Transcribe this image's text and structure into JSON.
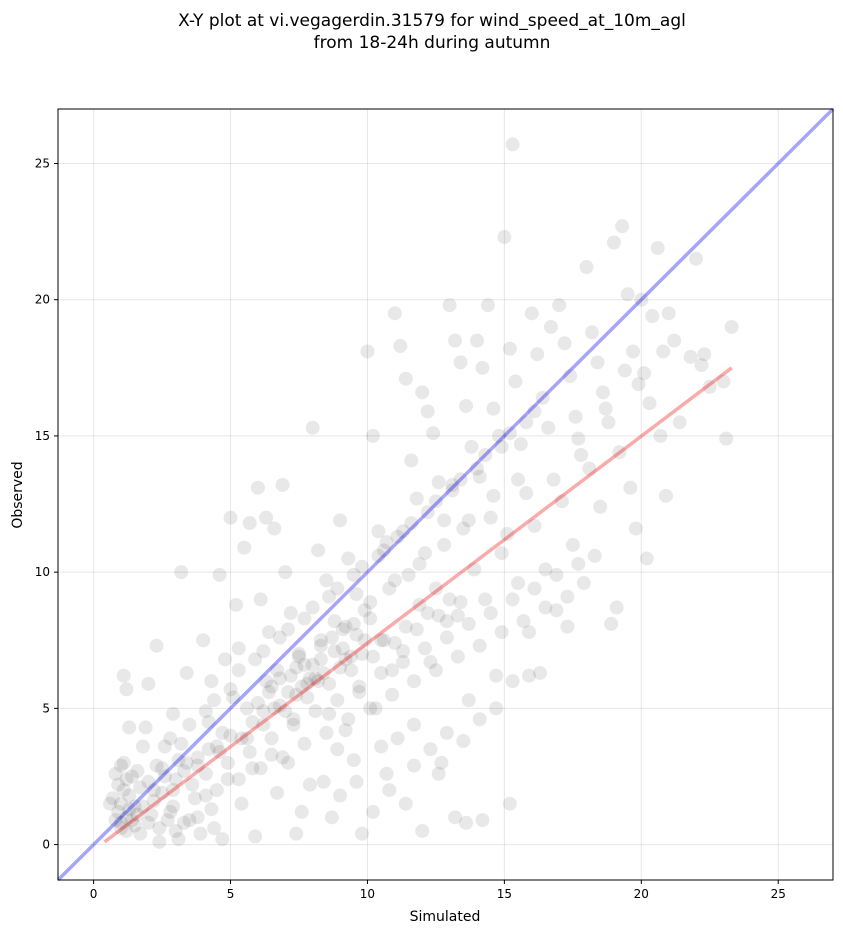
{
  "chart_data": {
    "type": "scatter",
    "title_line1": "X-Y plot at vi.vegagerdin.31579 for wind_speed_at_10m_agl",
    "title_line2": "from 18-24h during autumn",
    "xlabel": "Simulated",
    "ylabel": "Observed",
    "xlim": [
      -1.3,
      27
    ],
    "ylim": [
      -1.3,
      27
    ],
    "xticks": [
      0,
      5,
      10,
      15,
      20,
      25
    ],
    "yticks": [
      0,
      5,
      10,
      15,
      20,
      25
    ],
    "grid": true,
    "point_color": "#000000",
    "point_opacity": 0.09,
    "identity_line": {
      "x": [
        -1.3,
        27
      ],
      "y": [
        -1.3,
        27
      ],
      "color": "#0000ee",
      "opacity": 0.35
    },
    "fit_line": {
      "x": [
        0.4,
        23.3
      ],
      "y": [
        0.1,
        17.5
      ],
      "color": "#ee0000",
      "opacity": 0.33
    },
    "points": [
      [
        1.0,
        1.5
      ],
      [
        1.1,
        2.0
      ],
      [
        0.9,
        1.2
      ],
      [
        1.3,
        1.8
      ],
      [
        0.8,
        2.6
      ],
      [
        1.2,
        1.0
      ],
      [
        1.5,
        1.4
      ],
      [
        1.0,
        0.8
      ],
      [
        0.7,
        1.7
      ],
      [
        1.4,
        2.5
      ],
      [
        1.1,
        3.0
      ],
      [
        0.9,
        2.2
      ],
      [
        1.6,
        1.1
      ],
      [
        1.2,
        0.5
      ],
      [
        0.8,
        0.9
      ],
      [
        1.7,
        2.1
      ],
      [
        1.3,
        1.3
      ],
      [
        1.0,
        2.9
      ],
      [
        1.5,
        0.7
      ],
      [
        0.6,
        1.5
      ],
      [
        1.1,
        6.2
      ],
      [
        1.2,
        5.7
      ],
      [
        1.3,
        4.3
      ],
      [
        1.9,
        4.3
      ],
      [
        2.3,
        7.3
      ],
      [
        2.0,
        5.9
      ],
      [
        1.8,
        3.6
      ],
      [
        2.5,
        2.8
      ],
      [
        2.2,
        1.6
      ],
      [
        2.7,
        0.9
      ],
      [
        2.4,
        0.1
      ],
      [
        3.0,
        0.5
      ],
      [
        3.2,
        10.0
      ],
      [
        3.4,
        6.3
      ],
      [
        2.9,
        4.8
      ],
      [
        3.1,
        3.1
      ],
      [
        3.6,
        2.2
      ],
      [
        3.8,
        1.0
      ],
      [
        3.3,
        2.7
      ],
      [
        2.8,
        3.9
      ],
      [
        4.0,
        7.5
      ],
      [
        4.3,
        6.0
      ],
      [
        4.6,
        9.9
      ],
      [
        4.8,
        6.8
      ],
      [
        4.2,
        4.5
      ],
      [
        4.5,
        3.6
      ],
      [
        4.9,
        2.4
      ],
      [
        4.1,
        1.8
      ],
      [
        4.4,
        0.6
      ],
      [
        4.7,
        0.2
      ],
      [
        5.0,
        12.0
      ],
      [
        5.2,
        8.8
      ],
      [
        5.5,
        10.9
      ],
      [
        5.7,
        11.8
      ],
      [
        5.3,
        7.2
      ],
      [
        5.1,
        5.4
      ],
      [
        5.6,
        3.9
      ],
      [
        5.8,
        2.8
      ],
      [
        5.4,
        1.5
      ],
      [
        5.9,
        0.3
      ],
      [
        6.0,
        13.1
      ],
      [
        6.3,
        12.0
      ],
      [
        6.6,
        11.6
      ],
      [
        6.9,
        13.2
      ],
      [
        6.1,
        9.0
      ],
      [
        6.4,
        7.8
      ],
      [
        6.8,
        6.1
      ],
      [
        6.2,
        4.9
      ],
      [
        6.5,
        3.3
      ],
      [
        6.7,
        1.9
      ],
      [
        7.0,
        10.0
      ],
      [
        7.2,
        8.5
      ],
      [
        7.5,
        7.0
      ],
      [
        7.8,
        5.9
      ],
      [
        7.3,
        4.6
      ],
      [
        7.1,
        3.0
      ],
      [
        7.6,
        1.2
      ],
      [
        7.4,
        0.4
      ],
      [
        7.9,
        2.2
      ],
      [
        7.7,
        6.6
      ],
      [
        8.0,
        15.3
      ],
      [
        8.2,
        10.8
      ],
      [
        8.5,
        9.7
      ],
      [
        8.8,
        8.2
      ],
      [
        8.3,
        7.3
      ],
      [
        8.1,
        6.1
      ],
      [
        8.6,
        4.8
      ],
      [
        8.9,
        3.5
      ],
      [
        8.4,
        2.3
      ],
      [
        8.7,
        1.0
      ],
      [
        9.0,
        11.9
      ],
      [
        9.3,
        10.5
      ],
      [
        9.6,
        9.2
      ],
      [
        9.9,
        8.6
      ],
      [
        9.1,
        7.9
      ],
      [
        9.4,
        6.9
      ],
      [
        9.7,
        5.6
      ],
      [
        9.2,
        4.2
      ],
      [
        9.5,
        3.1
      ],
      [
        9.8,
        0.4
      ],
      [
        10.0,
        18.1
      ],
      [
        10.2,
        15.0
      ],
      [
        10.4,
        11.5
      ],
      [
        10.6,
        10.8
      ],
      [
        10.8,
        9.4
      ],
      [
        10.1,
        8.3
      ],
      [
        10.5,
        7.5
      ],
      [
        10.9,
        6.4
      ],
      [
        10.3,
        5.0
      ],
      [
        10.7,
        2.6
      ],
      [
        11.0,
        19.5
      ],
      [
        11.2,
        18.3
      ],
      [
        11.4,
        17.1
      ],
      [
        11.6,
        14.1
      ],
      [
        11.8,
        12.7
      ],
      [
        11.1,
        11.3
      ],
      [
        11.5,
        9.9
      ],
      [
        11.9,
        8.8
      ],
      [
        11.3,
        7.1
      ],
      [
        11.7,
        4.4
      ],
      [
        12.0,
        16.6
      ],
      [
        12.2,
        15.9
      ],
      [
        12.4,
        15.1
      ],
      [
        12.6,
        13.3
      ],
      [
        12.8,
        11.9
      ],
      [
        12.1,
        10.7
      ],
      [
        12.5,
        9.4
      ],
      [
        12.9,
        8.2
      ],
      [
        12.3,
        6.7
      ],
      [
        12.7,
        3.0
      ],
      [
        13.0,
        19.8
      ],
      [
        13.2,
        18.5
      ],
      [
        13.4,
        17.7
      ],
      [
        13.6,
        16.1
      ],
      [
        13.8,
        14.6
      ],
      [
        13.1,
        13.2
      ],
      [
        13.5,
        11.6
      ],
      [
        13.9,
        10.1
      ],
      [
        13.3,
        8.4
      ],
      [
        13.7,
        5.3
      ],
      [
        14.0,
        18.5
      ],
      [
        14.2,
        17.5
      ],
      [
        14.4,
        19.8
      ],
      [
        14.6,
        16.0
      ],
      [
        14.8,
        15.0
      ],
      [
        14.1,
        13.5
      ],
      [
        14.5,
        12.0
      ],
      [
        14.9,
        10.7
      ],
      [
        14.3,
        9.0
      ],
      [
        14.7,
        6.2
      ],
      [
        15.0,
        22.3
      ],
      [
        15.2,
        18.2
      ],
      [
        15.3,
        25.7
      ],
      [
        15.4,
        17.0
      ],
      [
        15.6,
        14.7
      ],
      [
        15.8,
        12.9
      ],
      [
        15.1,
        11.4
      ],
      [
        15.5,
        9.6
      ],
      [
        15.9,
        7.8
      ],
      [
        15.2,
        1.5
      ],
      [
        16.0,
        19.5
      ],
      [
        16.2,
        18.0
      ],
      [
        16.4,
        16.4
      ],
      [
        16.6,
        15.3
      ],
      [
        16.8,
        13.4
      ],
      [
        16.1,
        11.7
      ],
      [
        16.5,
        10.1
      ],
      [
        16.9,
        8.6
      ],
      [
        16.3,
        6.3
      ],
      [
        16.7,
        19.0
      ],
      [
        17.0,
        19.8
      ],
      [
        17.2,
        18.4
      ],
      [
        17.4,
        17.2
      ],
      [
        17.6,
        15.7
      ],
      [
        17.8,
        14.3
      ],
      [
        17.1,
        12.6
      ],
      [
        17.5,
        11.0
      ],
      [
        17.9,
        9.6
      ],
      [
        17.3,
        8.0
      ],
      [
        17.7,
        14.9
      ],
      [
        18.0,
        21.2
      ],
      [
        18.2,
        18.8
      ],
      [
        18.4,
        17.7
      ],
      [
        18.6,
        16.6
      ],
      [
        18.8,
        15.5
      ],
      [
        18.1,
        13.8
      ],
      [
        18.5,
        12.4
      ],
      [
        18.9,
        8.1
      ],
      [
        18.3,
        10.6
      ],
      [
        18.7,
        16.0
      ],
      [
        19.0,
        22.1
      ],
      [
        19.3,
        22.7
      ],
      [
        19.5,
        20.2
      ],
      [
        19.7,
        18.1
      ],
      [
        19.9,
        16.9
      ],
      [
        19.2,
        14.4
      ],
      [
        19.6,
        13.1
      ],
      [
        19.8,
        11.6
      ],
      [
        19.1,
        8.7
      ],
      [
        19.4,
        17.4
      ],
      [
        20.0,
        20.0
      ],
      [
        20.2,
        10.5
      ],
      [
        20.4,
        19.4
      ],
      [
        20.6,
        21.9
      ],
      [
        20.8,
        18.1
      ],
      [
        20.3,
        16.2
      ],
      [
        20.7,
        15.0
      ],
      [
        20.1,
        17.3
      ],
      [
        21.0,
        19.5
      ],
      [
        21.4,
        15.5
      ],
      [
        21.8,
        17.9
      ],
      [
        22.0,
        21.5
      ],
      [
        22.3,
        18.0
      ],
      [
        22.5,
        16.8
      ],
      [
        23.1,
        14.9
      ],
      [
        23.3,
        19.0
      ],
      [
        23.0,
        17.0
      ],
      [
        21.2,
        18.5
      ],
      [
        20.9,
        12.8
      ],
      [
        22.2,
        17.6
      ],
      [
        1.2,
        2.4
      ],
      [
        1.6,
        2.7
      ],
      [
        2.0,
        2.3
      ],
      [
        2.3,
        2.9
      ],
      [
        2.6,
        3.6
      ],
      [
        2.9,
        2.0
      ],
      [
        3.2,
        3.7
      ],
      [
        3.5,
        4.4
      ],
      [
        3.8,
        3.2
      ],
      [
        4.1,
        4.9
      ],
      [
        4.4,
        5.3
      ],
      [
        4.7,
        4.1
      ],
      [
        5.0,
        5.7
      ],
      [
        5.3,
        6.4
      ],
      [
        5.6,
        5.0
      ],
      [
        5.9,
        6.8
      ],
      [
        6.2,
        7.1
      ],
      [
        6.5,
        5.8
      ],
      [
        6.8,
        7.6
      ],
      [
        7.1,
        7.9
      ],
      [
        7.4,
        6.5
      ],
      [
        7.7,
        8.3
      ],
      [
        8.0,
        8.7
      ],
      [
        8.3,
        7.5
      ],
      [
        8.6,
        9.1
      ],
      [
        8.9,
        9.4
      ],
      [
        9.2,
        8.0
      ],
      [
        9.5,
        9.9
      ],
      [
        9.8,
        10.2
      ],
      [
        10.1,
        8.9
      ],
      [
        10.4,
        10.6
      ],
      [
        10.7,
        11.1
      ],
      [
        11.0,
        9.7
      ],
      [
        11.3,
        11.5
      ],
      [
        11.6,
        11.8
      ],
      [
        11.9,
        10.3
      ],
      [
        12.2,
        12.2
      ],
      [
        12.5,
        12.6
      ],
      [
        12.8,
        11.0
      ],
      [
        13.1,
        13.0
      ],
      [
        13.4,
        13.4
      ],
      [
        13.7,
        11.9
      ],
      [
        14.0,
        13.8
      ],
      [
        14.3,
        14.3
      ],
      [
        14.6,
        12.8
      ],
      [
        14.9,
        14.6
      ],
      [
        15.2,
        15.1
      ],
      [
        15.5,
        13.4
      ],
      [
        15.8,
        15.5
      ],
      [
        16.1,
        15.9
      ],
      [
        2.1,
        1.1
      ],
      [
        2.5,
        1.9
      ],
      [
        2.9,
        1.4
      ],
      [
        3.3,
        0.8
      ],
      [
        3.7,
        1.7
      ],
      [
        4.1,
        2.6
      ],
      [
        4.5,
        2.0
      ],
      [
        4.9,
        3.0
      ],
      [
        5.3,
        2.4
      ],
      [
        5.7,
        3.4
      ],
      [
        6.1,
        2.8
      ],
      [
        6.5,
        3.9
      ],
      [
        6.9,
        3.2
      ],
      [
        7.3,
        4.4
      ],
      [
        7.7,
        3.7
      ],
      [
        8.1,
        4.9
      ],
      [
        8.5,
        4.1
      ],
      [
        8.9,
        5.3
      ],
      [
        9.3,
        4.6
      ],
      [
        9.7,
        5.8
      ],
      [
        10.1,
        5.0
      ],
      [
        10.5,
        6.3
      ],
      [
        10.9,
        5.5
      ],
      [
        11.3,
        6.7
      ],
      [
        11.7,
        6.0
      ],
      [
        12.1,
        7.2
      ],
      [
        12.5,
        6.4
      ],
      [
        12.9,
        7.6
      ],
      [
        13.3,
        6.9
      ],
      [
        13.7,
        8.1
      ],
      [
        14.1,
        7.3
      ],
      [
        14.5,
        8.5
      ],
      [
        14.9,
        7.8
      ],
      [
        15.3,
        9.0
      ],
      [
        15.7,
        8.2
      ],
      [
        16.1,
        9.4
      ],
      [
        16.5,
        8.7
      ],
      [
        16.9,
        9.9
      ],
      [
        17.3,
        9.1
      ],
      [
        17.7,
        10.3
      ],
      [
        1.8,
        1.4
      ],
      [
        2.2,
        2.0
      ],
      [
        2.6,
        2.5
      ],
      [
        3.0,
        2.4
      ],
      [
        3.4,
        3.0
      ],
      [
        3.8,
        2.9
      ],
      [
        4.2,
        3.5
      ],
      [
        4.6,
        3.4
      ],
      [
        5.0,
        4.0
      ],
      [
        5.4,
        3.9
      ],
      [
        5.8,
        4.5
      ],
      [
        6.2,
        4.4
      ],
      [
        6.6,
        5.0
      ],
      [
        7.0,
        4.9
      ],
      [
        7.4,
        5.5
      ],
      [
        7.8,
        5.4
      ],
      [
        8.2,
        6.0
      ],
      [
        8.6,
        5.9
      ],
      [
        9.0,
        6.5
      ],
      [
        9.4,
        6.4
      ],
      [
        9.8,
        7.0
      ],
      [
        10.2,
        6.9
      ],
      [
        10.6,
        7.5
      ],
      [
        11.0,
        7.4
      ],
      [
        11.4,
        8.0
      ],
      [
        11.8,
        7.9
      ],
      [
        12.2,
        8.5
      ],
      [
        12.6,
        8.4
      ],
      [
        13.0,
        9.0
      ],
      [
        13.4,
        8.9
      ],
      [
        6.3,
        6.0
      ],
      [
        6.7,
        6.4
      ],
      [
        7.1,
        5.6
      ],
      [
        7.5,
        6.9
      ],
      [
        7.9,
        6.1
      ],
      [
        8.3,
        6.8
      ],
      [
        8.7,
        7.6
      ],
      [
        9.1,
        7.2
      ],
      [
        9.5,
        8.1
      ],
      [
        9.9,
        7.5
      ],
      [
        6.0,
        5.2
      ],
      [
        6.4,
        5.6
      ],
      [
        6.8,
        5.1
      ],
      [
        7.2,
        6.2
      ],
      [
        7.6,
        5.8
      ],
      [
        8.0,
        6.6
      ],
      [
        8.4,
        6.3
      ],
      [
        8.8,
        7.1
      ],
      [
        9.2,
        6.8
      ],
      [
        9.6,
        7.7
      ],
      [
        1.0,
        0.6
      ],
      [
        1.4,
        0.9
      ],
      [
        1.7,
        0.4
      ],
      [
        2.0,
        0.8
      ],
      [
        2.4,
        0.6
      ],
      [
        2.8,
        1.2
      ],
      [
        3.1,
        0.2
      ],
      [
        3.5,
        0.9
      ],
      [
        3.9,
        0.4
      ],
      [
        4.3,
        1.3
      ],
      [
        9.0,
        1.8
      ],
      [
        9.6,
        2.3
      ],
      [
        10.2,
        1.2
      ],
      [
        10.8,
        2.0
      ],
      [
        11.4,
        1.5
      ],
      [
        12.0,
        0.5
      ],
      [
        12.6,
        2.6
      ],
      [
        13.2,
        1.0
      ],
      [
        13.6,
        0.8
      ],
      [
        14.2,
        0.9
      ],
      [
        10.5,
        3.6
      ],
      [
        11.1,
        3.9
      ],
      [
        11.7,
        2.9
      ],
      [
        12.3,
        3.5
      ],
      [
        12.9,
        4.1
      ],
      [
        13.5,
        3.8
      ],
      [
        14.1,
        4.6
      ],
      [
        14.7,
        5.0
      ],
      [
        15.3,
        6.0
      ],
      [
        15.9,
        6.2
      ]
    ]
  }
}
